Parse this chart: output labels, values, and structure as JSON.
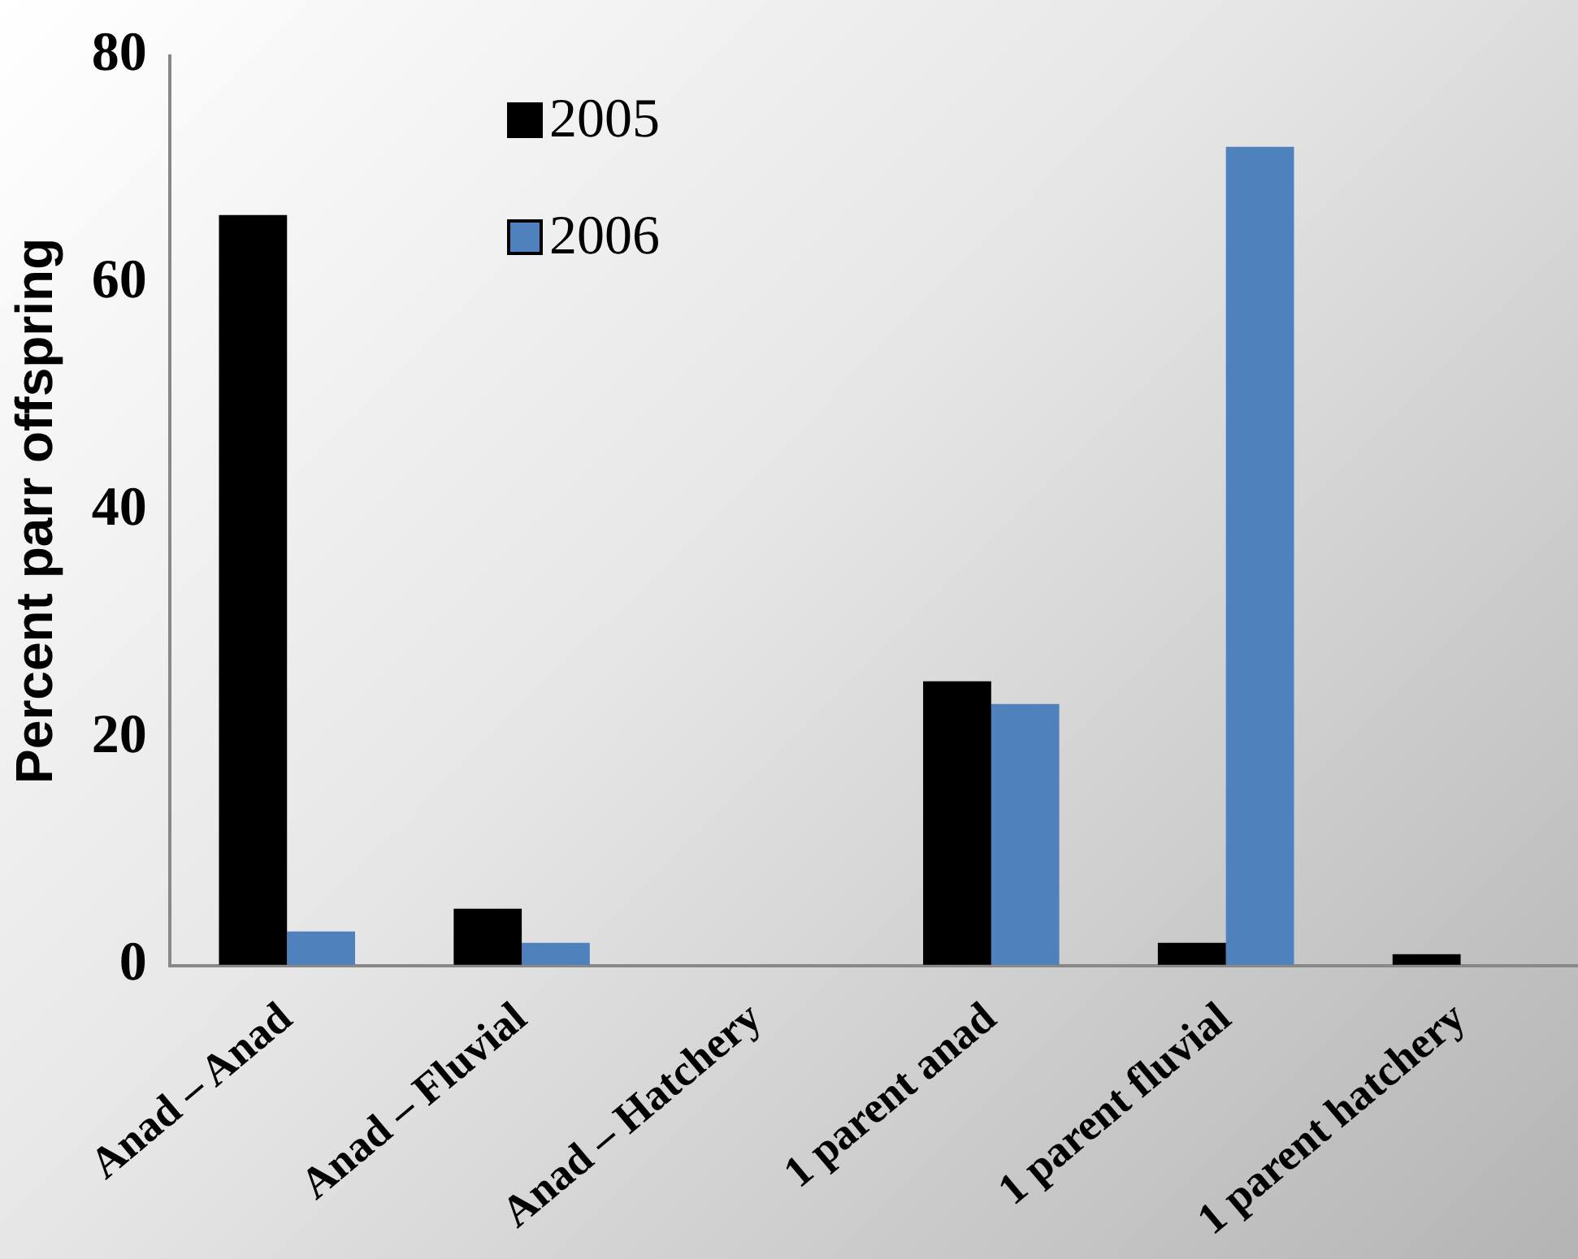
{
  "chart_data": {
    "type": "bar",
    "ylabel": "Percent parr offspring",
    "categories": [
      "Anad – Anad",
      "Anad – Fluvial",
      "Anad – Hatchery",
      "1 parent anad",
      "1 parent fluvial",
      "1 parent hatchery"
    ],
    "series": [
      {
        "name": "2005",
        "color": "#000000",
        "values": [
          66,
          5,
          0,
          25,
          2,
          1
        ]
      },
      {
        "name": "2006",
        "color": "#4f81bd",
        "values": [
          3,
          2,
          0,
          23,
          72,
          0
        ]
      }
    ],
    "ylim": [
      0,
      80
    ],
    "yticks": [
      0,
      20,
      40,
      60,
      80
    ],
    "grid": false,
    "legend": "top left"
  }
}
